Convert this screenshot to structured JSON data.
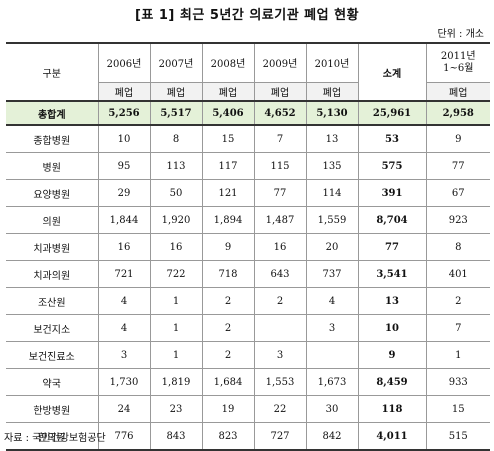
{
  "title": "[표 1] 최근 5년간 의료기관 폐업 현황",
  "unit": "단위 : 개소",
  "header": {
    "gubun": "구분",
    "years": [
      "2006년",
      "2007년",
      "2008년",
      "2009년",
      "2010년"
    ],
    "total": "소계",
    "year_2011_line1": "2011년",
    "year_2011_line2": "1~6월",
    "sub_label": "폐업"
  },
  "summary_row": {
    "label": "총합계",
    "values": [
      "5,256",
      "5,517",
      "5,406",
      "4,652",
      "5,130",
      "25,961",
      "2,958"
    ]
  },
  "rows": [
    {
      "label": "종합병원",
      "values": [
        "10",
        "8",
        "15",
        "7",
        "13",
        "53",
        "9"
      ]
    },
    {
      "label": "병원",
      "values": [
        "95",
        "113",
        "117",
        "115",
        "135",
        "575",
        "77"
      ]
    },
    {
      "label": "요양병원",
      "values": [
        "29",
        "50",
        "121",
        "77",
        "114",
        "391",
        "67"
      ]
    },
    {
      "label": "의원",
      "values": [
        "1,844",
        "1,920",
        "1,894",
        "1,487",
        "1,559",
        "8,704",
        "923"
      ]
    },
    {
      "label": "치과병원",
      "values": [
        "16",
        "16",
        "9",
        "16",
        "20",
        "77",
        "8"
      ]
    },
    {
      "label": "치과의원",
      "values": [
        "721",
        "722",
        "718",
        "643",
        "737",
        "3,541",
        "401"
      ]
    },
    {
      "label": "조산원",
      "values": [
        "4",
        "1",
        "2",
        "2",
        "4",
        "13",
        "2"
      ]
    },
    {
      "label": "보건지소",
      "values": [
        "4",
        "1",
        "2",
        "",
        "3",
        "10",
        "7"
      ]
    },
    {
      "label": "보건진료소",
      "values": [
        "3",
        "1",
        "2",
        "3",
        "",
        "9",
        "1"
      ]
    },
    {
      "label": "약국",
      "values": [
        "1,730",
        "1,819",
        "1,684",
        "1,553",
        "1,673",
        "8,459",
        "933"
      ]
    },
    {
      "label": "한방병원",
      "values": [
        "24",
        "23",
        "19",
        "22",
        "30",
        "118",
        "15"
      ]
    },
    {
      "label": "한의원",
      "values": [
        "776",
        "843",
        "823",
        "727",
        "842",
        "4,011",
        "515"
      ]
    }
  ],
  "source": "자료 : 국민건강보험공단"
}
